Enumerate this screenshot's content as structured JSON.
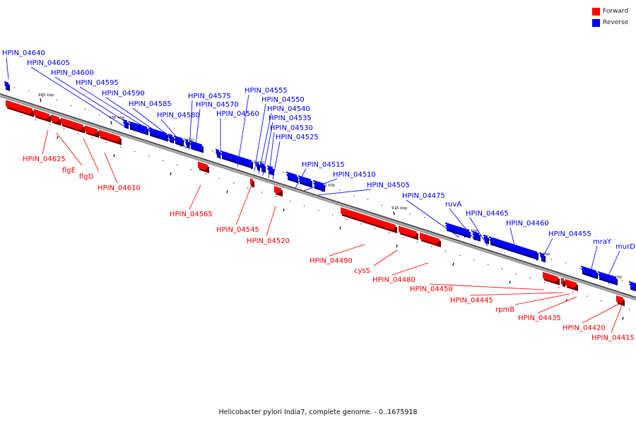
{
  "legend": {
    "forward_label": "Forward",
    "reverse_label": "Reverse",
    "forward_color": "#ff0000",
    "reverse_color": "#0000ff"
  },
  "caption": "Helicobacter pylori India7, complete genome. - 0..1675918",
  "scale_labels": [
    "940 kbp",
    "935 kbp",
    "930 kbp",
    "925 kbp",
    "920 kbp",
    "915 kbp",
    "910 kbp",
    "905 kbp",
    "900 kbp"
  ],
  "genes": [
    {
      "name": "HPIN_04640",
      "strand": "reverse"
    },
    {
      "name": "HPIN_04605",
      "strand": "reverse"
    },
    {
      "name": "HPIN_04600",
      "strand": "reverse"
    },
    {
      "name": "HPIN_04595",
      "strand": "reverse"
    },
    {
      "name": "HPIN_04590",
      "strand": "reverse"
    },
    {
      "name": "HPIN_04585",
      "strand": "reverse"
    },
    {
      "name": "HPIN_04580",
      "strand": "reverse"
    },
    {
      "name": "HPIN_04575",
      "strand": "reverse"
    },
    {
      "name": "HPIN_04570",
      "strand": "reverse"
    },
    {
      "name": "HPIN_04560",
      "strand": "reverse"
    },
    {
      "name": "HPIN_04555",
      "strand": "reverse"
    },
    {
      "name": "HPIN_04550",
      "strand": "reverse"
    },
    {
      "name": "HPIN_04540",
      "strand": "reverse"
    },
    {
      "name": "HPIN_04535",
      "strand": "reverse"
    },
    {
      "name": "HPIN_04530",
      "strand": "reverse"
    },
    {
      "name": "HPIN_04525",
      "strand": "reverse"
    },
    {
      "name": "HPIN_04515",
      "strand": "reverse"
    },
    {
      "name": "HPIN_04510",
      "strand": "reverse"
    },
    {
      "name": "HPIN_04505",
      "strand": "reverse"
    },
    {
      "name": "HPIN_04475",
      "strand": "reverse"
    },
    {
      "name": "ruvA",
      "strand": "reverse"
    },
    {
      "name": "HPIN_04465",
      "strand": "reverse"
    },
    {
      "name": "HPIN_04460",
      "strand": "reverse"
    },
    {
      "name": "HPIN_04455",
      "strand": "reverse"
    },
    {
      "name": "mraY",
      "strand": "reverse"
    },
    {
      "name": "murD",
      "strand": "reverse"
    },
    {
      "name": "HPIN_04625",
      "strand": "forward"
    },
    {
      "name": "flgE",
      "strand": "forward"
    },
    {
      "name": "flgD",
      "strand": "forward"
    },
    {
      "name": "HPIN_04610",
      "strand": "forward"
    },
    {
      "name": "HPIN_04565",
      "strand": "forward"
    },
    {
      "name": "HPIN_04545",
      "strand": "forward"
    },
    {
      "name": "HPIN_04520",
      "strand": "forward"
    },
    {
      "name": "HPIN_04490",
      "strand": "forward"
    },
    {
      "name": "cysS",
      "strand": "forward"
    },
    {
      "name": "HPIN_04480",
      "strand": "forward"
    },
    {
      "name": "HPIN_04450",
      "strand": "forward"
    },
    {
      "name": "HPIN_04445",
      "strand": "forward"
    },
    {
      "name": "rpmB",
      "strand": "forward"
    },
    {
      "name": "HPIN_04435",
      "strand": "forward"
    },
    {
      "name": "HPIN_04420",
      "strand": "forward"
    },
    {
      "name": "HPIN_04415",
      "strand": "forward"
    }
  ]
}
